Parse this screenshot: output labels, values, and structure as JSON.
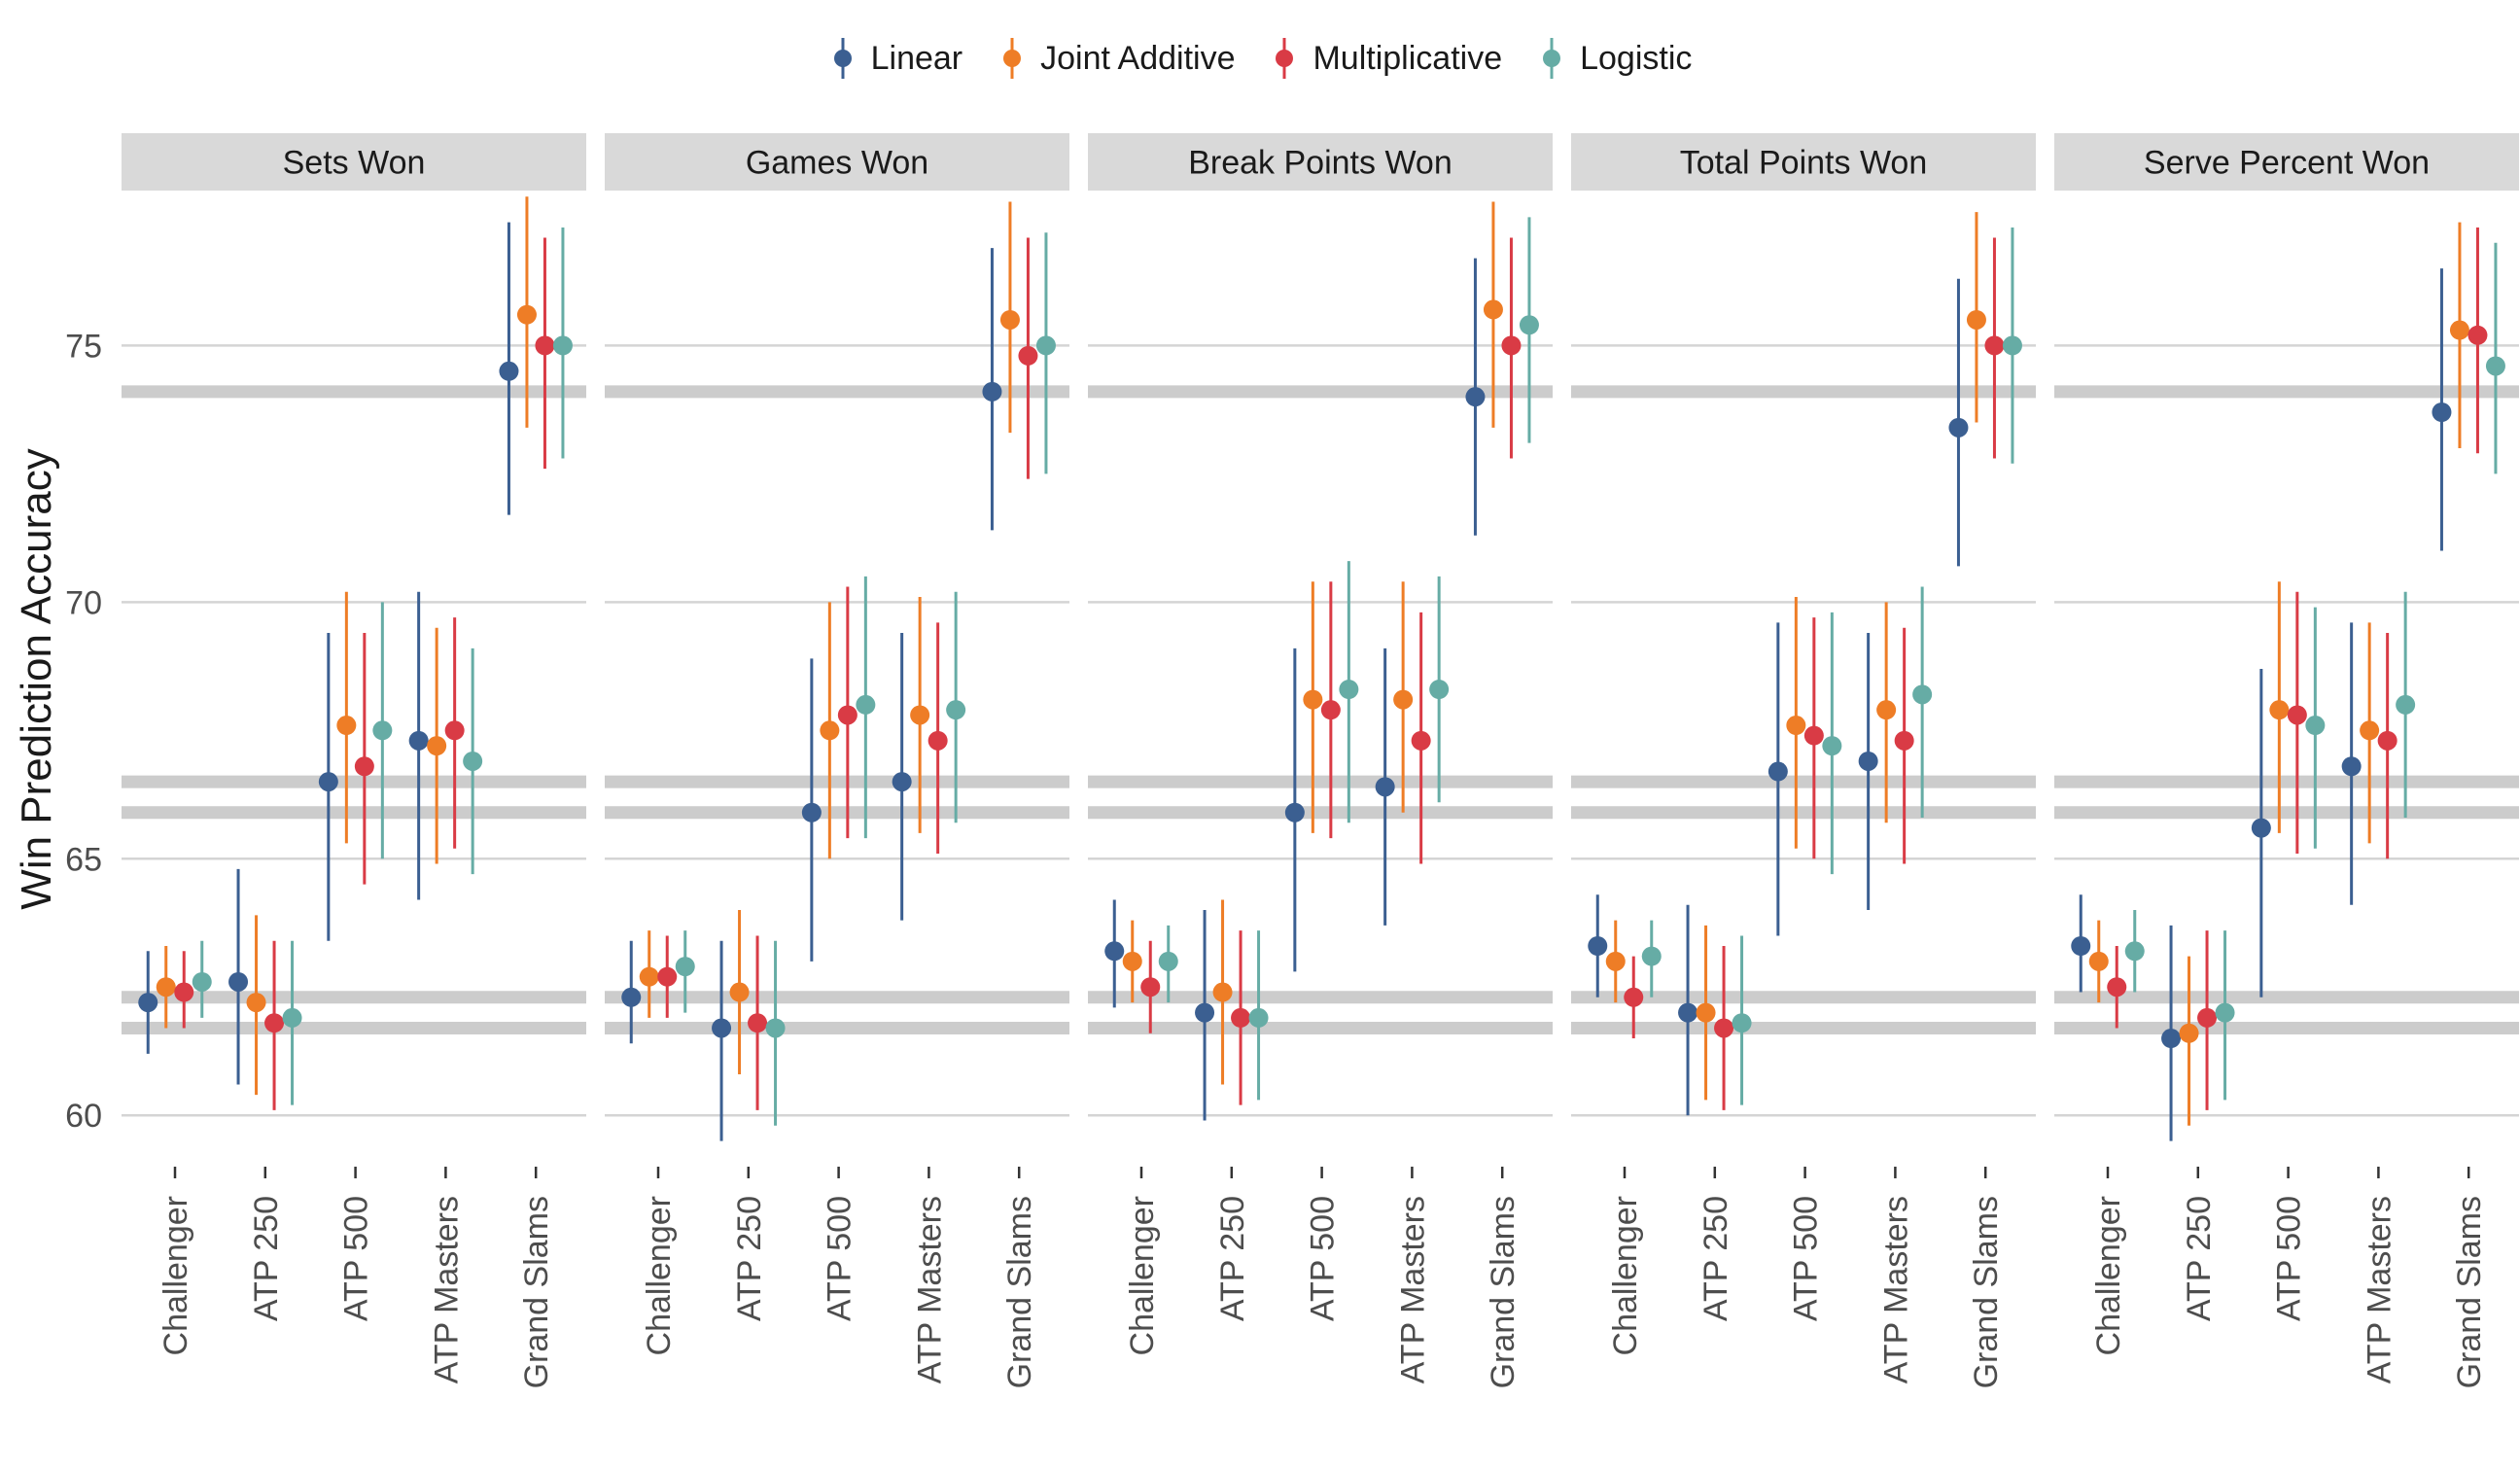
{
  "chart_data": {
    "type": "scatter",
    "subtype": "faceted point-range",
    "ylabel": "Win Prediction Accuracy",
    "xlabel": "",
    "ylim": [
      59,
      78
    ],
    "yticks": [
      60,
      65,
      70,
      75
    ],
    "grid": true,
    "legend_position": "top",
    "categories": [
      "Challenger",
      "ATP 250",
      "ATP 500",
      "ATP Masters",
      "Grand Slams"
    ],
    "reference_lines": [
      61.7,
      62.3,
      65.9,
      66.5,
      74.1
    ],
    "series": [
      {
        "name": "Linear",
        "color": "#3b5f91"
      },
      {
        "name": "Joint Additive",
        "color": "#ee7d26"
      },
      {
        "name": "Multiplicative",
        "color": "#d93b45"
      },
      {
        "name": "Logistic",
        "color": "#66aca5"
      }
    ],
    "facets": [
      {
        "title": "Sets Won",
        "data": [
          [
            [
              62.2,
              61.2,
              63.2
            ],
            [
              62.5,
              61.7,
              63.3
            ],
            [
              62.4,
              61.7,
              63.2
            ],
            [
              62.6,
              61.9,
              63.4
            ]
          ],
          [
            [
              62.6,
              60.6,
              64.8
            ],
            [
              62.2,
              60.4,
              63.9
            ],
            [
              61.8,
              60.1,
              63.4
            ],
            [
              61.9,
              60.2,
              63.4
            ]
          ],
          [
            [
              66.5,
              63.4,
              69.4
            ],
            [
              67.6,
              65.3,
              70.2
            ],
            [
              66.8,
              64.5,
              69.4
            ],
            [
              67.5,
              65.0,
              70.0
            ]
          ],
          [
            [
              67.3,
              64.2,
              70.2
            ],
            [
              67.2,
              64.9,
              69.5
            ],
            [
              67.5,
              65.2,
              69.7
            ],
            [
              66.9,
              64.7,
              69.1
            ]
          ],
          [
            [
              74.5,
              71.7,
              77.4
            ],
            [
              75.6,
              73.4,
              77.9
            ],
            [
              75.0,
              72.6,
              77.1
            ],
            [
              75.0,
              72.8,
              77.3
            ]
          ]
        ]
      },
      {
        "title": "Games Won",
        "data": [
          [
            [
              62.3,
              61.4,
              63.4
            ],
            [
              62.7,
              61.9,
              63.6
            ],
            [
              62.7,
              61.9,
              63.5
            ],
            [
              62.9,
              62.0,
              63.6
            ]
          ],
          [
            [
              61.7,
              59.5,
              63.4
            ],
            [
              62.4,
              60.8,
              64.0
            ],
            [
              61.8,
              60.1,
              63.5
            ],
            [
              61.7,
              59.8,
              63.4
            ]
          ],
          [
            [
              65.9,
              63.0,
              68.9
            ],
            [
              67.5,
              65.0,
              70.0
            ],
            [
              67.8,
              65.4,
              70.3
            ],
            [
              68.0,
              65.4,
              70.5
            ]
          ],
          [
            [
              66.5,
              63.8,
              69.4
            ],
            [
              67.8,
              65.5,
              70.1
            ],
            [
              67.3,
              65.1,
              69.6
            ],
            [
              67.9,
              65.7,
              70.2
            ]
          ],
          [
            [
              74.1,
              71.4,
              76.9
            ],
            [
              75.5,
              73.3,
              77.8
            ],
            [
              74.8,
              72.4,
              77.1
            ],
            [
              75.0,
              72.5,
              77.2
            ]
          ]
        ]
      },
      {
        "title": "Break Points Won",
        "data": [
          [
            [
              63.2,
              62.1,
              64.2
            ],
            [
              63.0,
              62.2,
              63.8
            ],
            [
              62.5,
              61.6,
              63.4
            ],
            [
              63.0,
              62.2,
              63.7
            ]
          ],
          [
            [
              62.0,
              59.9,
              64.0
            ],
            [
              62.4,
              60.6,
              64.2
            ],
            [
              61.9,
              60.2,
              63.6
            ],
            [
              61.9,
              60.3,
              63.6
            ]
          ],
          [
            [
              65.9,
              62.8,
              69.1
            ],
            [
              68.1,
              65.5,
              70.4
            ],
            [
              67.9,
              65.4,
              70.4
            ],
            [
              68.3,
              65.7,
              70.8
            ]
          ],
          [
            [
              66.4,
              63.7,
              69.1
            ],
            [
              68.1,
              65.9,
              70.4
            ],
            [
              67.3,
              64.9,
              69.8
            ],
            [
              68.3,
              66.1,
              70.5
            ]
          ],
          [
            [
              74.0,
              71.3,
              76.7
            ],
            [
              75.7,
              73.4,
              77.8
            ],
            [
              75.0,
              72.8,
              77.1
            ],
            [
              75.4,
              73.1,
              77.5
            ]
          ]
        ]
      },
      {
        "title": "Total Points Won",
        "data": [
          [
            [
              63.3,
              62.3,
              64.3
            ],
            [
              63.0,
              62.2,
              63.8
            ],
            [
              62.3,
              61.5,
              63.1
            ],
            [
              63.1,
              62.3,
              63.8
            ]
          ],
          [
            [
              62.0,
              60.0,
              64.1
            ],
            [
              62.0,
              60.3,
              63.7
            ],
            [
              61.7,
              60.1,
              63.3
            ],
            [
              61.8,
              60.2,
              63.5
            ]
          ],
          [
            [
              66.7,
              63.5,
              69.6
            ],
            [
              67.6,
              65.2,
              70.1
            ],
            [
              67.4,
              65.0,
              69.7
            ],
            [
              67.2,
              64.7,
              69.8
            ]
          ],
          [
            [
              66.9,
              64.0,
              69.4
            ],
            [
              67.9,
              65.7,
              70.0
            ],
            [
              67.3,
              64.9,
              69.5
            ],
            [
              68.2,
              65.8,
              70.3
            ]
          ],
          [
            [
              73.4,
              70.7,
              76.3
            ],
            [
              75.5,
              73.5,
              77.6
            ],
            [
              75.0,
              72.8,
              77.1
            ],
            [
              75.0,
              72.7,
              77.3
            ]
          ]
        ]
      },
      {
        "title": "Serve Percent Won",
        "data": [
          [
            [
              63.3,
              62.4,
              64.3
            ],
            [
              63.0,
              62.2,
              63.8
            ],
            [
              62.5,
              61.7,
              63.3
            ],
            [
              63.2,
              62.4,
              64.0
            ]
          ],
          [
            [
              61.5,
              59.5,
              63.7
            ],
            [
              61.6,
              59.8,
              63.1
            ],
            [
              61.9,
              60.1,
              63.6
            ],
            [
              62.0,
              60.3,
              63.6
            ]
          ],
          [
            [
              65.6,
              62.3,
              68.7
            ],
            [
              67.9,
              65.5,
              70.4
            ],
            [
              67.8,
              65.1,
              70.2
            ],
            [
              67.6,
              65.2,
              69.9
            ]
          ],
          [
            [
              66.8,
              64.1,
              69.6
            ],
            [
              67.5,
              65.3,
              69.6
            ],
            [
              67.3,
              65.0,
              69.4
            ],
            [
              68.0,
              65.8,
              70.2
            ]
          ],
          [
            [
              73.7,
              71.0,
              76.5
            ],
            [
              75.3,
              73.0,
              77.4
            ],
            [
              75.2,
              72.9,
              77.3
            ],
            [
              74.6,
              72.5,
              77.0
            ]
          ]
        ]
      }
    ]
  }
}
